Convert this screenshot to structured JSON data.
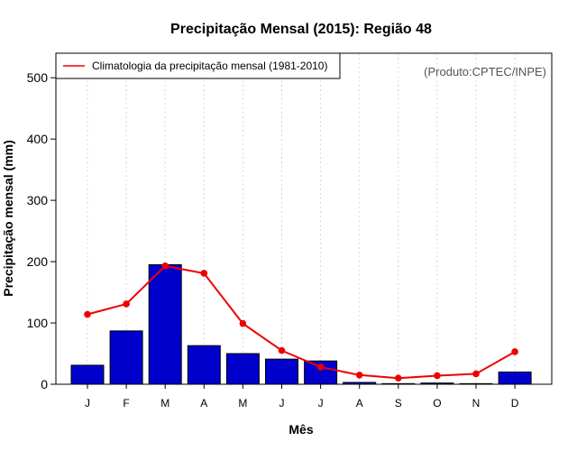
{
  "chart_data": {
    "type": "bar",
    "title": "Precipitação Mensal (2015): Região 48",
    "xlabel": "Mês",
    "ylabel": "Precipitação mensal (mm)",
    "categories": [
      "J",
      "F",
      "M",
      "A",
      "M",
      "J",
      "J",
      "A",
      "S",
      "O",
      "N",
      "D"
    ],
    "ylim": [
      0,
      540
    ],
    "yticks": [
      0,
      100,
      200,
      300,
      400,
      500
    ],
    "grid": "vertical dotted",
    "source_note": "(Produto:CPTEC/INPE)",
    "series": [
      {
        "name": "Precipitação mensal (2015)",
        "kind": "bar",
        "color": "#0000cd",
        "values": [
          31,
          87,
          195,
          63,
          50,
          41,
          38,
          3,
          1,
          2,
          1,
          20
        ]
      },
      {
        "name": "Climatologia da precipitação mensal (1981-2010)",
        "kind": "line",
        "color": "#ee0000",
        "values": [
          114,
          131,
          193,
          181,
          99,
          55,
          28,
          15,
          10,
          14,
          17,
          53
        ]
      }
    ],
    "legend": {
      "position": "top-left",
      "entries": [
        "Climatologia da precipitação mensal (1981-2010)"
      ]
    }
  }
}
